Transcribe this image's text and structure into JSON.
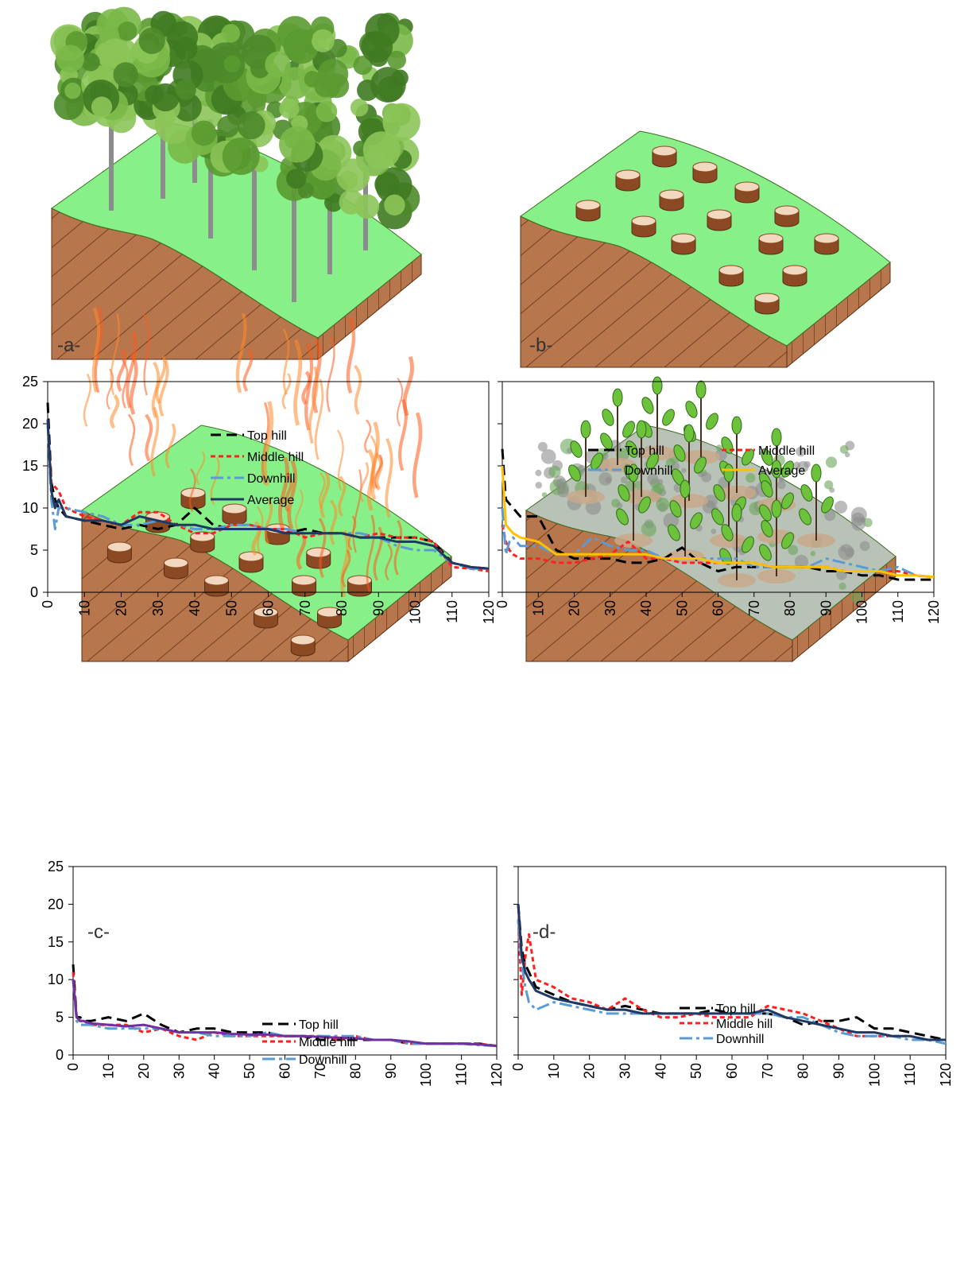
{
  "chart_data": [
    {
      "type": "line",
      "x": [
        0,
        1,
        2,
        3,
        5,
        10,
        15,
        20,
        25,
        30,
        35,
        40,
        45,
        50,
        55,
        60,
        65,
        70,
        75,
        80,
        85,
        90,
        95,
        100,
        105,
        110,
        115,
        120
      ],
      "xlim": [
        0,
        120
      ],
      "xticks": [
        0,
        10,
        20,
        30,
        40,
        50,
        60,
        70,
        80,
        90,
        100,
        110,
        120
      ],
      "ylim": [
        0,
        25
      ],
      "yticks": [
        0,
        5,
        10,
        15,
        20,
        25
      ],
      "ytick_labels": true,
      "legend": "upper center",
      "legend_columns": 1,
      "series": [
        {
          "name": "Top hill",
          "color": "#000000",
          "style": "long-dash",
          "values": [
            22.5,
            13,
            11,
            10,
            9,
            8.5,
            8,
            7.5,
            8,
            7.5,
            8,
            10,
            8,
            7.5,
            7.5,
            7.5,
            7,
            7.5,
            7,
            7,
            6.5,
            6.5,
            6.5,
            6.5,
            6,
            3.5,
            3,
            2.8
          ]
        },
        {
          "name": "Middle hill",
          "color": "#ff2020",
          "style": "short-dash",
          "values": [
            20,
            13,
            12.5,
            12,
            10,
            9,
            8.5,
            8,
            9.5,
            9.5,
            8,
            7,
            7,
            8,
            8,
            7.5,
            7.5,
            6.5,
            7,
            7,
            6.5,
            7,
            6.5,
            6.5,
            6,
            3,
            2.8,
            2.5
          ]
        },
        {
          "name": "Downhill",
          "color": "#5b9bd5",
          "style": "dash-dot",
          "values": [
            20,
            11,
            7.5,
            10,
            10,
            9.5,
            9,
            8,
            8,
            8.5,
            8,
            7.5,
            7.5,
            8,
            8,
            7.5,
            7.5,
            7,
            7,
            7,
            7,
            6.5,
            5.5,
            5,
            5,
            3.5,
            2.8,
            2.8
          ]
        },
        {
          "name": "Average",
          "color": "#1f3864",
          "style": "solid",
          "values": [
            20.5,
            12,
            10,
            11,
            9,
            8.5,
            8.5,
            8,
            9,
            8.5,
            8,
            8,
            7.5,
            7.5,
            7.5,
            7.5,
            7,
            7,
            7,
            7,
            6.5,
            6.5,
            6,
            6,
            5.5,
            3.5,
            3,
            2.8
          ]
        }
      ]
    },
    {
      "type": "line",
      "x": [
        0,
        1,
        2,
        3,
        5,
        10,
        15,
        20,
        25,
        30,
        35,
        40,
        45,
        50,
        55,
        60,
        65,
        70,
        75,
        80,
        85,
        90,
        95,
        100,
        105,
        110,
        115,
        120
      ],
      "xlim": [
        0,
        120
      ],
      "xticks": [
        0,
        10,
        20,
        30,
        40,
        50,
        60,
        70,
        80,
        90,
        100,
        110,
        120
      ],
      "ylim": [
        0,
        25
      ],
      "yticks": [
        0,
        5,
        10,
        15,
        20,
        25
      ],
      "ytick_labels": false,
      "legend": "upper center",
      "legend_columns": 2,
      "series": [
        {
          "name": "Top hill",
          "color": "#000000",
          "style": "long-dash",
          "values": [
            17,
            11,
            10.5,
            10,
            9,
            9,
            5,
            4,
            4,
            4,
            3.5,
            3.5,
            4,
            5.3,
            3.5,
            2.5,
            3,
            3,
            3,
            3,
            3,
            2.5,
            2.5,
            2,
            2,
            1.5,
            1.5,
            1.5
          ]
        },
        {
          "name": "Middle hill",
          "color": "#ff2020",
          "style": "short-dash",
          "values": [
            8,
            6,
            5,
            4.5,
            4,
            4,
            3.5,
            3.5,
            4,
            4.5,
            6,
            4,
            4,
            3.5,
            3.5,
            3.5,
            3.5,
            3.5,
            3,
            3,
            3,
            3,
            2.5,
            2.5,
            2.5,
            2.5,
            2,
            1.8
          ]
        },
        {
          "name": "Downhill",
          "color": "#5b9bd5",
          "style": "dash-dot",
          "values": [
            10,
            4.5,
            6,
            6.5,
            5.5,
            5.5,
            4.5,
            4.5,
            6.5,
            5.5,
            5,
            5,
            4,
            4,
            4,
            4,
            4,
            3,
            3,
            3,
            3,
            4,
            3.5,
            3,
            2.5,
            3,
            2,
            1.8
          ]
        },
        {
          "name": "Average",
          "color": "#ffc000",
          "style": "solid",
          "values": [
            15,
            8,
            7.5,
            7,
            6.5,
            6,
            4.5,
            4.5,
            4.5,
            4.5,
            4.5,
            4.5,
            4,
            4,
            4,
            3.5,
            3.5,
            3.5,
            3,
            3,
            3,
            3,
            2.5,
            2.5,
            2.5,
            2,
            2,
            1.8
          ]
        }
      ]
    },
    {
      "type": "line",
      "x": [
        0,
        1,
        2,
        3,
        5,
        10,
        15,
        20,
        25,
        30,
        35,
        40,
        45,
        50,
        55,
        60,
        65,
        70,
        75,
        80,
        85,
        90,
        95,
        100,
        105,
        110,
        115,
        120
      ],
      "xlim": [
        0,
        120
      ],
      "xticks": [
        0,
        10,
        20,
        30,
        40,
        50,
        60,
        70,
        80,
        90,
        100,
        110,
        120
      ],
      "ylim": [
        0,
        25
      ],
      "yticks": [
        0,
        5,
        10,
        15,
        20,
        25
      ],
      "ytick_labels": true,
      "legend": "upper center",
      "legend_columns": 1,
      "series": [
        {
          "name": "Top hill",
          "color": "#000000",
          "style": "long-dash",
          "values": [
            12,
            5,
            5,
            4.5,
            4.5,
            5,
            4.5,
            5.5,
            4,
            3,
            3.5,
            3.5,
            3,
            3,
            3,
            2.5,
            2.5,
            2,
            2,
            2,
            2,
            2,
            1.5,
            1.5,
            1.5,
            1.5,
            1.5,
            1.2
          ]
        },
        {
          "name": "Middle hill",
          "color": "#ff2020",
          "style": "short-dash",
          "values": [
            11,
            5,
            4.5,
            4.5,
            4,
            4,
            4,
            3,
            3.5,
            2.5,
            2,
            3,
            2.5,
            2.5,
            2.5,
            2.5,
            2.5,
            2.5,
            2,
            2.5,
            2,
            2,
            1.5,
            1.5,
            1.5,
            1.5,
            1.5,
            1.2
          ]
        },
        {
          "name": "Downhill",
          "color": "#5b9bd5",
          "style": "dash-dot",
          "values": [
            10,
            4.5,
            4,
            4,
            4,
            3.5,
            3.5,
            3.5,
            3.5,
            3,
            3,
            2.5,
            2.5,
            2.5,
            3,
            2.5,
            2.5,
            2.5,
            2.5,
            2.5,
            2,
            2,
            1.5,
            1.5,
            1.5,
            1.5,
            1.3,
            1.2
          ]
        },
        {
          "color": "#7030a0",
          "style": "solid",
          "values": [
            10,
            5,
            4.5,
            4.5,
            4.2,
            4,
            3.8,
            4,
            3.5,
            3,
            3,
            3,
            2.8,
            2.7,
            2.7,
            2.5,
            2.5,
            2.4,
            2.3,
            2.2,
            2,
            2,
            1.8,
            1.5,
            1.5,
            1.5,
            1.4,
            1.2
          ]
        }
      ]
    },
    {
      "type": "line",
      "x": [
        0,
        1,
        2,
        3,
        5,
        10,
        15,
        20,
        25,
        30,
        35,
        40,
        45,
        50,
        55,
        60,
        65,
        70,
        75,
        80,
        85,
        90,
        95,
        100,
        105,
        110,
        115,
        120
      ],
      "xlim": [
        0,
        120
      ],
      "xticks": [
        0,
        10,
        20,
        30,
        40,
        50,
        60,
        70,
        80,
        90,
        100,
        110,
        120
      ],
      "ylim": [
        0,
        25
      ],
      "yticks": [
        0,
        5,
        10,
        15,
        20,
        25
      ],
      "ytick_labels": false,
      "legend": "upper center",
      "legend_columns": 1,
      "series": [
        {
          "name": "Top hill",
          "color": "#000000",
          "style": "long-dash",
          "values": [
            20,
            14,
            12,
            11,
            9,
            8,
            7,
            6.5,
            6,
            6.5,
            6,
            5.5,
            5.5,
            5.5,
            6,
            5.5,
            5.5,
            5.5,
            5,
            4,
            4.5,
            4.5,
            5,
            3.5,
            3.5,
            3,
            2.5,
            2
          ]
        },
        {
          "name": "Middle hill",
          "color": "#ff2020",
          "style": "short-dash",
          "values": [
            18,
            8,
            13,
            16,
            10,
            9,
            7.5,
            7,
            6,
            7.5,
            6,
            5,
            5,
            5.5,
            5,
            5,
            5,
            6.5,
            6,
            5.5,
            4.5,
            3.5,
            2.5,
            2.5,
            2.5,
            2.5,
            2,
            2
          ]
        },
        {
          "name": "Downhill",
          "color": "#5b9bd5",
          "style": "dash-dot",
          "values": [
            18,
            12,
            9,
            7,
            6,
            7,
            6.5,
            6,
            5.5,
            5.5,
            5.5,
            5.5,
            5.5,
            5.5,
            5.5,
            5.5,
            5.5,
            5.5,
            5,
            5,
            4,
            3,
            2.5,
            2.5,
            2.5,
            2,
            2,
            1.5
          ]
        },
        {
          "color": "#1f3864",
          "style": "solid",
          "values": [
            20,
            13,
            11,
            10,
            8.5,
            7.5,
            7,
            6.5,
            6,
            6,
            5.5,
            5.5,
            5.5,
            5.5,
            5.5,
            5.5,
            5.5,
            6,
            5,
            4.5,
            4,
            3.5,
            3,
            3,
            2.5,
            2.5,
            2,
            2
          ]
        }
      ]
    }
  ],
  "panels": [
    {
      "label": "-a-"
    },
    {
      "label": "-b-"
    },
    {
      "label": "-c-"
    },
    {
      "label": "-d-"
    }
  ]
}
